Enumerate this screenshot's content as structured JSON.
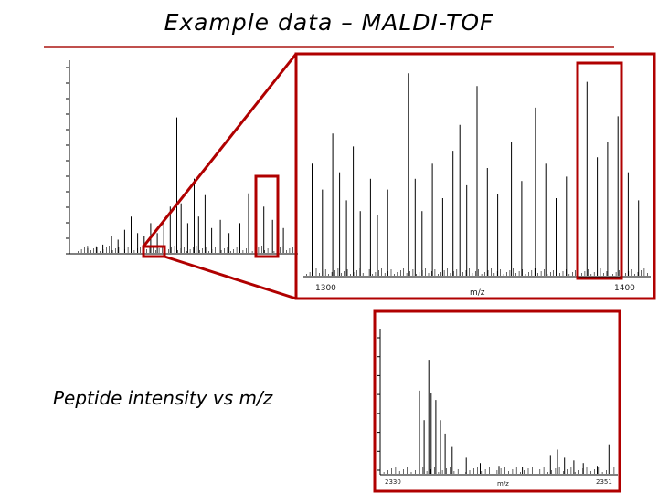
{
  "slide": {
    "title": "Example data – MALDI-TOF",
    "caption": "Peptide intensity vs m/z"
  },
  "colors": {
    "accent_red": "#c0504d",
    "box_red": "#b00000",
    "spectrum": "#000000"
  },
  "chart_data": [
    {
      "type": "line",
      "role": "full spectrum",
      "title": "",
      "xlabel": "",
      "ylabel": "",
      "grid": false,
      "peaks": [
        {
          "x": 0.05,
          "y": 0.03
        },
        {
          "x": 0.09,
          "y": 0.04
        },
        {
          "x": 0.12,
          "y": 0.05
        },
        {
          "x": 0.16,
          "y": 0.1
        },
        {
          "x": 0.19,
          "y": 0.08
        },
        {
          "x": 0.22,
          "y": 0.14
        },
        {
          "x": 0.25,
          "y": 0.22
        },
        {
          "x": 0.28,
          "y": 0.12
        },
        {
          "x": 0.31,
          "y": 0.1
        },
        {
          "x": 0.34,
          "y": 0.18
        },
        {
          "x": 0.37,
          "y": 0.12
        },
        {
          "x": 0.4,
          "y": 0.2
        },
        {
          "x": 0.43,
          "y": 0.28
        },
        {
          "x": 0.46,
          "y": 0.82
        },
        {
          "x": 0.48,
          "y": 0.3
        },
        {
          "x": 0.51,
          "y": 0.18
        },
        {
          "x": 0.54,
          "y": 0.45
        },
        {
          "x": 0.56,
          "y": 0.22
        },
        {
          "x": 0.59,
          "y": 0.35
        },
        {
          "x": 0.62,
          "y": 0.15
        },
        {
          "x": 0.66,
          "y": 0.2
        },
        {
          "x": 0.7,
          "y": 0.12
        },
        {
          "x": 0.75,
          "y": 0.18
        },
        {
          "x": 0.79,
          "y": 0.36
        },
        {
          "x": 0.82,
          "y": 0.42
        },
        {
          "x": 0.86,
          "y": 0.28
        },
        {
          "x": 0.9,
          "y": 0.2
        },
        {
          "x": 0.95,
          "y": 0.15
        }
      ]
    },
    {
      "type": "line",
      "role": "zoom 1",
      "xlabel": "m/z",
      "x_ticks": [
        "1300",
        "1400"
      ],
      "grid": false,
      "peaks": [
        {
          "x": 0.02,
          "y": 0.52
        },
        {
          "x": 0.05,
          "y": 0.4
        },
        {
          "x": 0.08,
          "y": 0.66
        },
        {
          "x": 0.1,
          "y": 0.48
        },
        {
          "x": 0.12,
          "y": 0.35
        },
        {
          "x": 0.14,
          "y": 0.6
        },
        {
          "x": 0.16,
          "y": 0.3
        },
        {
          "x": 0.19,
          "y": 0.45
        },
        {
          "x": 0.21,
          "y": 0.28
        },
        {
          "x": 0.24,
          "y": 0.4
        },
        {
          "x": 0.27,
          "y": 0.33
        },
        {
          "x": 0.3,
          "y": 0.94
        },
        {
          "x": 0.32,
          "y": 0.45
        },
        {
          "x": 0.34,
          "y": 0.3
        },
        {
          "x": 0.37,
          "y": 0.52
        },
        {
          "x": 0.4,
          "y": 0.36
        },
        {
          "x": 0.43,
          "y": 0.58
        },
        {
          "x": 0.45,
          "y": 0.7
        },
        {
          "x": 0.47,
          "y": 0.42
        },
        {
          "x": 0.5,
          "y": 0.88
        },
        {
          "x": 0.53,
          "y": 0.5
        },
        {
          "x": 0.56,
          "y": 0.38
        },
        {
          "x": 0.6,
          "y": 0.62
        },
        {
          "x": 0.63,
          "y": 0.44
        },
        {
          "x": 0.67,
          "y": 0.78
        },
        {
          "x": 0.7,
          "y": 0.52
        },
        {
          "x": 0.73,
          "y": 0.36
        },
        {
          "x": 0.76,
          "y": 0.46
        },
        {
          "x": 0.79,
          "y": 0.4
        },
        {
          "x": 0.82,
          "y": 0.9
        },
        {
          "x": 0.85,
          "y": 0.55
        },
        {
          "x": 0.88,
          "y": 0.62
        },
        {
          "x": 0.91,
          "y": 0.74
        },
        {
          "x": 0.94,
          "y": 0.48
        },
        {
          "x": 0.97,
          "y": 0.35
        }
      ]
    },
    {
      "type": "line",
      "role": "zoom 2",
      "xlabel": "m/z",
      "x_ticks": [
        "2330",
        "2351"
      ],
      "grid": false,
      "peaks": [
        {
          "x": 0.16,
          "y": 0.62
        },
        {
          "x": 0.18,
          "y": 0.4
        },
        {
          "x": 0.2,
          "y": 0.85
        },
        {
          "x": 0.21,
          "y": 0.6
        },
        {
          "x": 0.23,
          "y": 0.55
        },
        {
          "x": 0.25,
          "y": 0.4
        },
        {
          "x": 0.27,
          "y": 0.3
        },
        {
          "x": 0.3,
          "y": 0.2
        },
        {
          "x": 0.36,
          "y": 0.12
        },
        {
          "x": 0.42,
          "y": 0.08
        },
        {
          "x": 0.5,
          "y": 0.06
        },
        {
          "x": 0.6,
          "y": 0.05
        },
        {
          "x": 0.72,
          "y": 0.14
        },
        {
          "x": 0.75,
          "y": 0.18
        },
        {
          "x": 0.78,
          "y": 0.12
        },
        {
          "x": 0.82,
          "y": 0.1
        },
        {
          "x": 0.86,
          "y": 0.08
        },
        {
          "x": 0.92,
          "y": 0.06
        },
        {
          "x": 0.97,
          "y": 0.22
        }
      ]
    }
  ]
}
